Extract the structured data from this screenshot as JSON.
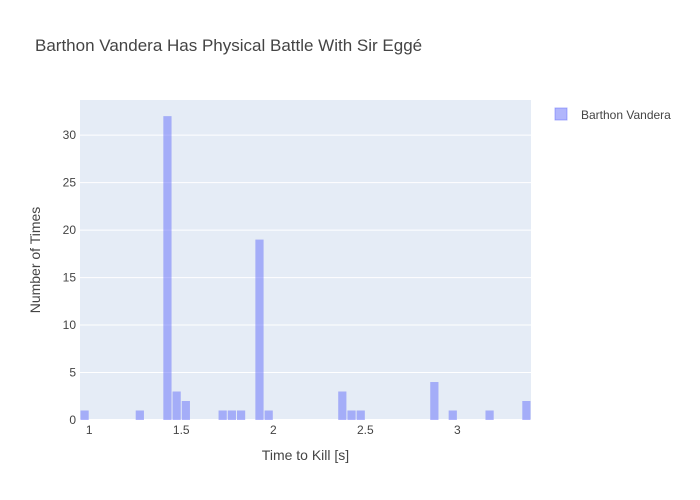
{
  "chart_data": {
    "type": "bar",
    "title": "Barthon Vandera Has Physical Battle With Sir Eggé",
    "xlabel": "Time to Kill [s]",
    "ylabel": "Number of Times",
    "xlim": [
      0.95,
      3.4
    ],
    "ylim": [
      0,
      33.7
    ],
    "bin_width": 0.05,
    "x_tick_values": [
      1,
      1.5,
      2,
      2.5,
      3
    ],
    "x_tick_labels": [
      "1",
      "1.5",
      "2",
      "2.5",
      "3"
    ],
    "y_tick_values": [
      0,
      5,
      10,
      15,
      20,
      25,
      30
    ],
    "y_tick_labels": [
      "0",
      "5",
      "10",
      "15",
      "20",
      "25",
      "30"
    ],
    "grid": true,
    "legend_position": "top-right",
    "series": [
      {
        "name": "Barthon Vandera",
        "color": "#636efa",
        "bins": [
          {
            "x0": 0.95,
            "count": 1
          },
          {
            "x0": 1.25,
            "count": 1
          },
          {
            "x0": 1.4,
            "count": 32
          },
          {
            "x0": 1.45,
            "count": 3
          },
          {
            "x0": 1.5,
            "count": 2
          },
          {
            "x0": 1.7,
            "count": 1
          },
          {
            "x0": 1.75,
            "count": 1
          },
          {
            "x0": 1.8,
            "count": 1
          },
          {
            "x0": 1.9,
            "count": 19
          },
          {
            "x0": 1.95,
            "count": 1
          },
          {
            "x0": 2.35,
            "count": 3
          },
          {
            "x0": 2.4,
            "count": 1
          },
          {
            "x0": 2.45,
            "count": 1
          },
          {
            "x0": 2.85,
            "count": 4
          },
          {
            "x0": 2.95,
            "count": 1
          },
          {
            "x0": 3.15,
            "count": 1
          },
          {
            "x0": 3.35,
            "count": 2
          }
        ]
      }
    ]
  }
}
